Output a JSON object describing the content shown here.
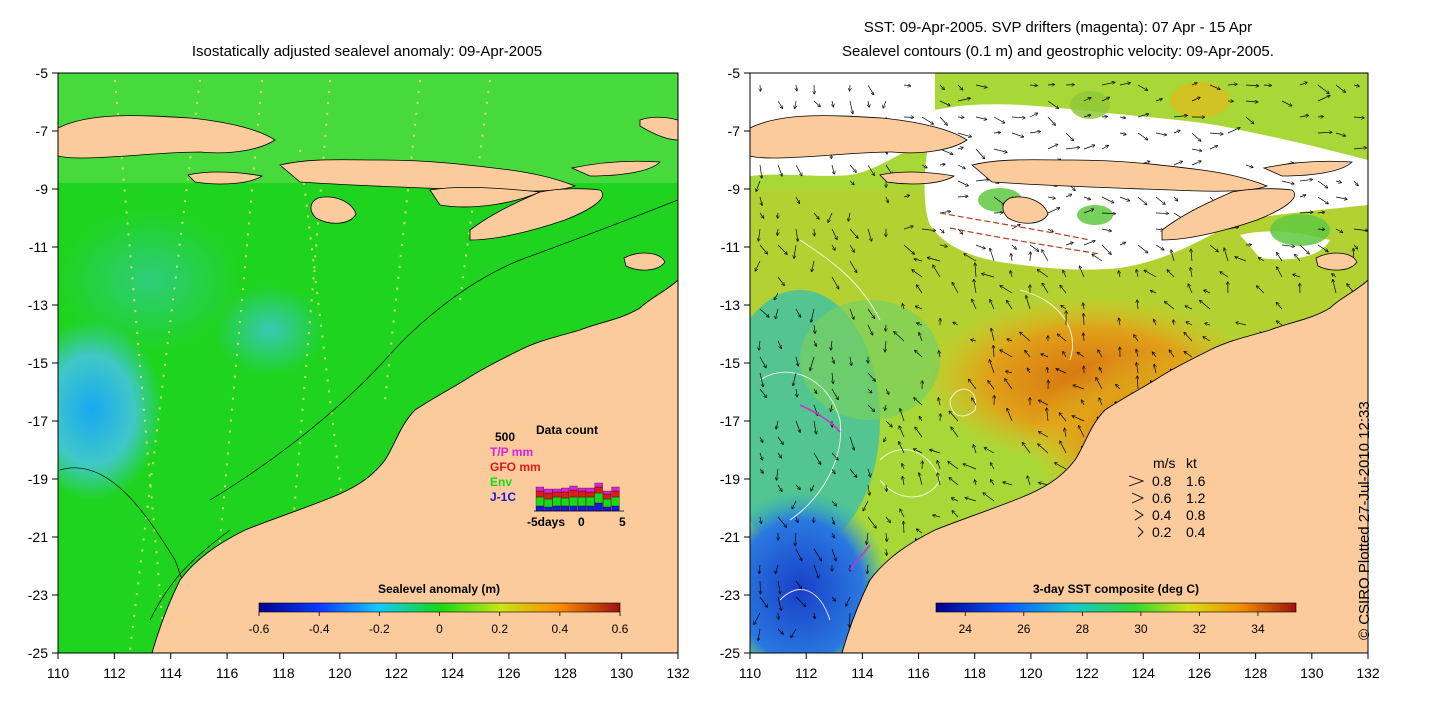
{
  "colors": {
    "land": "#fbcb9b",
    "ocean_left": "#1fd41f",
    "ocean_left_light": "#5fe05f",
    "ocean_left_blue": "#3cc8c8",
    "ocean_left_deep": "#1ab0e8",
    "sst_warm": "#e07d10",
    "sst_mid": "#e0c020",
    "sst_green": "#7cd040",
    "sst_cool": "#30b8b0",
    "sst_cold": "#1d5fd6",
    "cloud": "#ffffff"
  },
  "left_panel": {
    "title": "Isostatically adjusted sealevel anomaly: 09-Apr-2005",
    "y_ticks": [
      "-5",
      "-7",
      "-9",
      "-11",
      "-13",
      "-15",
      "-17",
      "-19",
      "-21",
      "-23",
      "-25"
    ],
    "x_ticks": [
      "110",
      "112",
      "114",
      "116",
      "118",
      "120",
      "122",
      "124",
      "126",
      "128",
      "130",
      "132"
    ],
    "colorbar": {
      "label": "Sealevel anomaly (m)",
      "ticks": [
        "-0.6",
        "-0.4",
        "-0.2",
        "0",
        "0.2",
        "0.4",
        "0.6"
      ],
      "range": [
        -0.6,
        0.6
      ]
    },
    "data_count": {
      "title": "Data count",
      "max_label": "500",
      "series": [
        {
          "name": "T/P mm",
          "color": "#e020e0"
        },
        {
          "name": "GFO mm",
          "color": "#e01818"
        },
        {
          "name": "Env",
          "color": "#18d818"
        },
        {
          "name": "J-1C",
          "color": "#1818e0"
        }
      ],
      "x_ticks": [
        "-5days",
        "0",
        "5"
      ]
    }
  },
  "right_panel": {
    "title_line1": "SST: 09-Apr-2005. SVP drifters (magenta): 07 Apr - 15 Apr",
    "title_line2": "Sealevel contours (0.1 m) and geostrophic velocity: 09-Apr-2005.",
    "y_ticks": [
      "-5",
      "-7",
      "-9",
      "-11",
      "-13",
      "-15",
      "-17",
      "-19",
      "-21",
      "-23",
      "-25"
    ],
    "x_ticks": [
      "110",
      "112",
      "114",
      "116",
      "118",
      "120",
      "122",
      "124",
      "126",
      "128",
      "130",
      "132"
    ],
    "colorbar": {
      "label": "3-day SST composite (deg C)",
      "ticks": [
        "24",
        "26",
        "28",
        "30",
        "32",
        "34"
      ],
      "range": [
        23,
        35.3
      ]
    },
    "velocity_legend": {
      "header_ms": "m/s",
      "header_kt": "kt",
      "rows": [
        {
          "ms": "0.8",
          "kt": "1.6"
        },
        {
          "ms": "0.6",
          "kt": "1.2"
        },
        {
          "ms": "0.4",
          "kt": "0.8"
        },
        {
          "ms": "0.2",
          "kt": "0.4"
        }
      ]
    }
  },
  "credit": "© CSIRO Plotted 27-Jul-2010 12:33"
}
